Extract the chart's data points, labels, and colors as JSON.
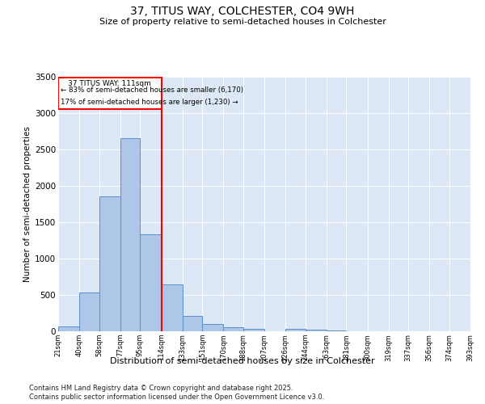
{
  "title": "37, TITUS WAY, COLCHESTER, CO4 9WH",
  "subtitle": "Size of property relative to semi-detached houses in Colchester",
  "xlabel": "Distribution of semi-detached houses by size in Colchester",
  "ylabel": "Number of semi-detached properties",
  "bar_color": "#aec6e8",
  "bar_edge_color": "#5b8fc9",
  "background_color": "#dce8f5",
  "property_line_x": 114,
  "property_label": "37 TITUS WAY: 111sqm",
  "annotation_smaller": "← 83% of semi-detached houses are smaller (6,170)",
  "annotation_larger": "17% of semi-detached houses are larger (1,230) →",
  "footer1": "Contains HM Land Registry data © Crown copyright and database right 2025.",
  "footer2": "Contains public sector information licensed under the Open Government Licence v3.0.",
  "bin_edges": [
    21,
    40,
    58,
    77,
    95,
    114,
    133,
    151,
    170,
    188,
    207,
    226,
    244,
    263,
    281,
    300,
    319,
    337,
    356,
    374,
    393
  ],
  "bin_labels": [
    "21sqm",
    "40sqm",
    "58sqm",
    "77sqm",
    "95sqm",
    "114sqm",
    "133sqm",
    "151sqm",
    "170sqm",
    "188sqm",
    "207sqm",
    "226sqm",
    "244sqm",
    "263sqm",
    "281sqm",
    "300sqm",
    "319sqm",
    "337sqm",
    "356sqm",
    "374sqm",
    "393sqm"
  ],
  "counts": [
    70,
    530,
    1860,
    2650,
    1330,
    640,
    215,
    105,
    55,
    35,
    0,
    30,
    20,
    10,
    0,
    0,
    0,
    0,
    0,
    0
  ],
  "ylim": [
    0,
    3500
  ],
  "yticks": [
    0,
    500,
    1000,
    1500,
    2000,
    2500,
    3000,
    3500
  ]
}
